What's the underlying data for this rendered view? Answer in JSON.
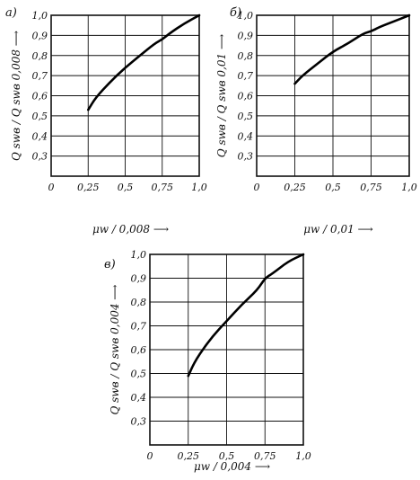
{
  "chart_data": [
    {
      "type": "line",
      "panel_label": "а)",
      "xlabel": "μw / 0,008 ⟶",
      "ylabel": "Q swв / Q swв 0,008 ⟶",
      "xlim": [
        0,
        1.0
      ],
      "ylim": [
        0.2,
        1.0
      ],
      "x_ticks": [
        "0",
        "0,25",
        "0,5",
        "0,75",
        "1,0"
      ],
      "y_ticks": [
        "0,3",
        "0,4",
        "0,5",
        "0,6",
        "0,7",
        "0,8",
        "0,9",
        "1,0"
      ],
      "grid": true,
      "series": [
        {
          "x": [
            0.25,
            0.3,
            0.4,
            0.5,
            0.6,
            0.7,
            0.75,
            0.8,
            0.9,
            1.0
          ],
          "y": [
            0.53,
            0.59,
            0.67,
            0.74,
            0.8,
            0.86,
            0.88,
            0.91,
            0.96,
            1.0
          ]
        }
      ]
    },
    {
      "type": "line",
      "panel_label": "б)",
      "xlabel": "μw / 0,01 ⟶",
      "ylabel": "Q swв / Q swв 0,01 ⟶",
      "xlim": [
        0,
        1.0
      ],
      "ylim": [
        0.2,
        1.0
      ],
      "x_ticks": [
        "0",
        "0,25",
        "0,5",
        "0,75",
        "1,0"
      ],
      "y_ticks": [
        "0,3",
        "0,4",
        "0,5",
        "0,6",
        "0,7",
        "0,8",
        "0,9",
        "1,0"
      ],
      "grid": true,
      "series": [
        {
          "x": [
            0.25,
            0.3,
            0.4,
            0.5,
            0.6,
            0.7,
            0.75,
            0.8,
            0.9,
            1.0
          ],
          "y": [
            0.66,
            0.7,
            0.76,
            0.82,
            0.86,
            0.91,
            0.92,
            0.94,
            0.97,
            1.0
          ]
        }
      ]
    },
    {
      "type": "line",
      "panel_label": "в)",
      "xlabel": "μw / 0,004 ⟶",
      "ylabel": "Q swв / Q swв 0,004 ⟶",
      "xlim": [
        0,
        1.0
      ],
      "ylim": [
        0.2,
        1.0
      ],
      "x_ticks": [
        "0",
        "0,25",
        "0,5",
        "0,75",
        "1,0"
      ],
      "y_ticks": [
        "0,3",
        "0,4",
        "0,5",
        "0,6",
        "0,7",
        "0,8",
        "0,9",
        "1,0"
      ],
      "grid": true,
      "series": [
        {
          "x": [
            0.25,
            0.3,
            0.4,
            0.5,
            0.6,
            0.7,
            0.75,
            0.8,
            0.9,
            1.0
          ],
          "y": [
            0.49,
            0.56,
            0.65,
            0.72,
            0.79,
            0.85,
            0.9,
            0.92,
            0.97,
            1.0
          ]
        }
      ]
    }
  ]
}
